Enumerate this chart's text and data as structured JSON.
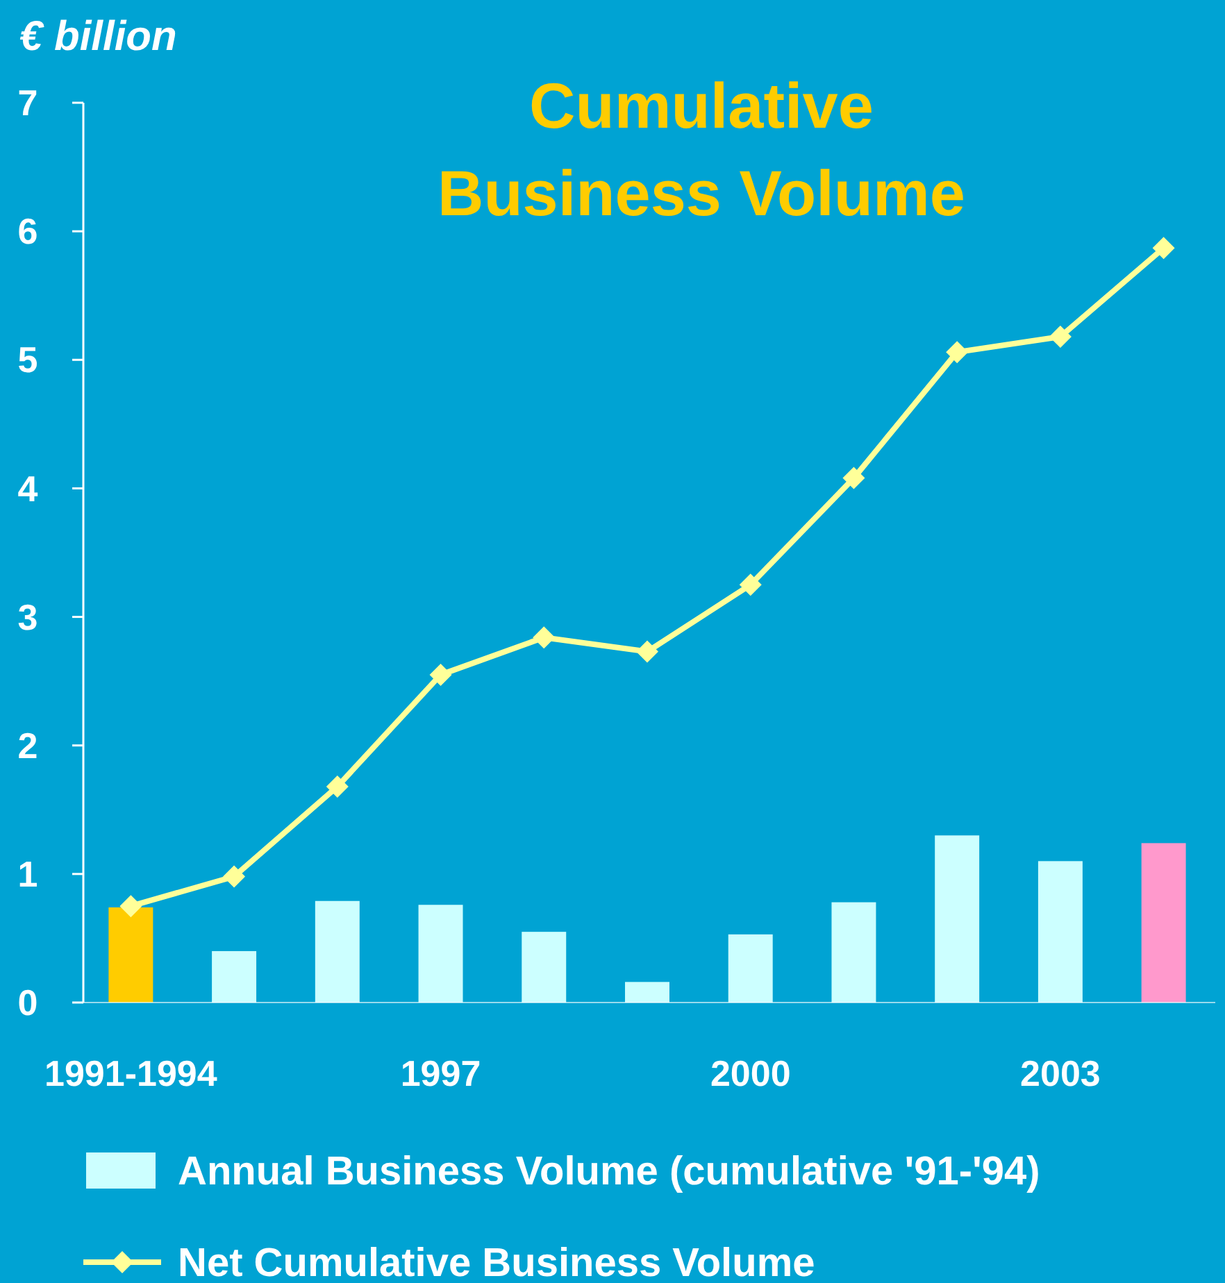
{
  "chart_data": {
    "type": "bar",
    "title": "Cumulative Business Volume",
    "ylabel": "€ billion",
    "categories": [
      "1991-1994",
      null,
      null,
      "1997",
      null,
      null,
      "2000",
      null,
      null,
      "2003",
      null
    ],
    "series": [
      {
        "name": "Annual Business Volume (cumulative '91-'94)",
        "color": "#ccffff",
        "colors": [
          "#ffcc00",
          "#ccffff",
          "#ccffff",
          "#ccffff",
          "#ccffff",
          "#ccffff",
          "#ccffff",
          "#ccffff",
          "#ccffff",
          "#ccffff",
          "#ff99cc"
        ],
        "values": [
          0.74,
          0.4,
          0.79,
          0.76,
          0.55,
          0.16,
          0.53,
          0.78,
          1.3,
          1.1,
          1.24
        ]
      },
      {
        "type": "line",
        "name": "Net Cumulative Business Volume",
        "color": "#ffff99",
        "marker": "diamond",
        "values": [
          0.75,
          0.98,
          1.68,
          2.55,
          2.84,
          2.73,
          3.25,
          4.08,
          5.06,
          5.18,
          5.87
        ]
      }
    ],
    "ylim": [
      0,
      7
    ],
    "yticks": [
      0,
      1,
      2,
      3,
      4,
      5,
      6,
      7
    ],
    "grid": false,
    "legend": "bottom"
  }
}
